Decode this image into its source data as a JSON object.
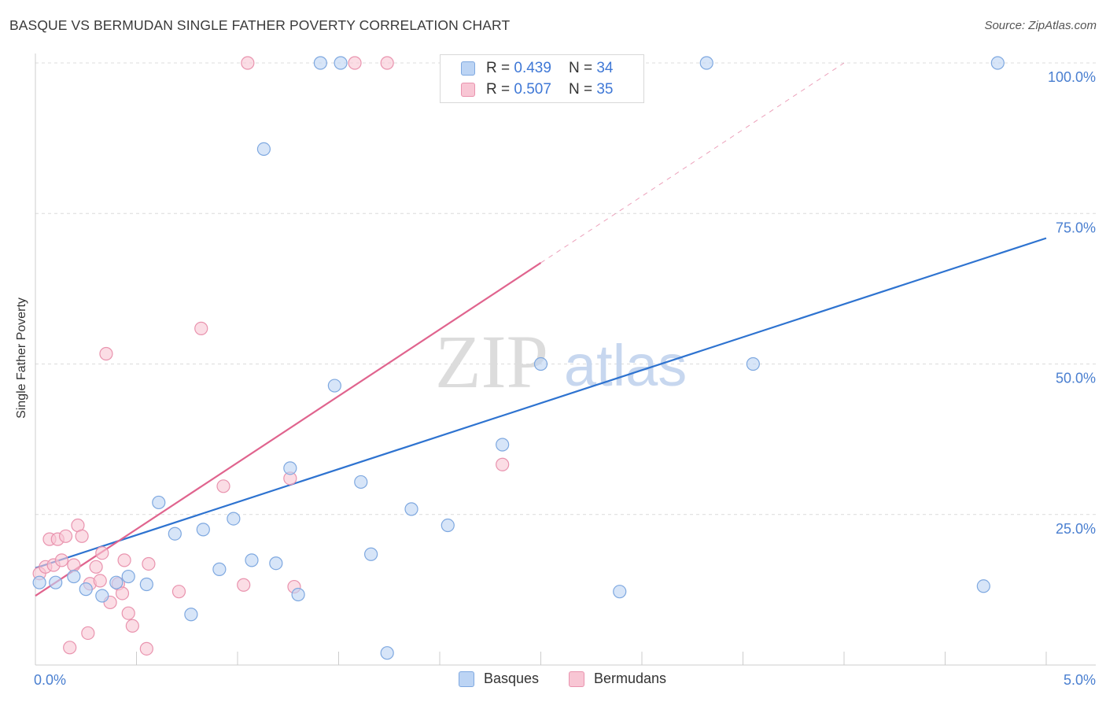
{
  "header": {
    "title": "BASQUE VS BERMUDAN SINGLE FATHER POVERTY CORRELATION CHART",
    "source": "Source: ZipAtlas.com"
  },
  "watermark": {
    "zip": "ZIP",
    "atlas": "atlas"
  },
  "legend": {
    "items": [
      {
        "r_label": "R =",
        "r_value": "0.439",
        "n_label": "N =",
        "n_value": "34"
      },
      {
        "r_label": "R =",
        "r_value": "0.507",
        "n_label": "N =",
        "n_value": "35"
      }
    ]
  },
  "bottom_legend": {
    "basques": "Basques",
    "bermudans": "Bermudans"
  },
  "colors": {
    "basque_fill": "#bcd4f4",
    "basque_stroke": "#7ea8e0",
    "basque_line": "#2e73d0",
    "bermudan_fill": "#f8c6d4",
    "bermudan_stroke": "#e993ae",
    "bermudan_line": "#e0648e",
    "grid": "#dcdcdc",
    "tick": "#4a7fd0"
  },
  "chart_data": {
    "type": "scatter",
    "title": "BASQUE VS BERMUDAN SINGLE FATHER POVERTY CORRELATION CHART",
    "xlabel": "",
    "ylabel": "Single Father Poverty",
    "xlim": [
      0,
      5
    ],
    "ylim": [
      0,
      100
    ],
    "x_tick_labels": [
      {
        "value": 0,
        "label": "0.0%"
      },
      {
        "value": 5,
        "label": "5.0%"
      }
    ],
    "y_tick_labels": [
      {
        "value": 25,
        "label": "25.0%"
      },
      {
        "value": 50,
        "label": "50.0%"
      },
      {
        "value": 75,
        "label": "75.0%"
      },
      {
        "value": 100,
        "label": "100.0%"
      }
    ],
    "series": [
      {
        "name": "Basques",
        "R": 0.439,
        "N": 34,
        "trend": {
          "x": [
            0,
            5
          ],
          "y": [
            16.1,
            70.9
          ],
          "dashed_extension": false
        },
        "points": [
          {
            "x": 0.02,
            "y": 13.7
          },
          {
            "x": 0.1,
            "y": 13.7
          },
          {
            "x": 0.19,
            "y": 14.7
          },
          {
            "x": 0.25,
            "y": 12.6
          },
          {
            "x": 0.33,
            "y": 11.5
          },
          {
            "x": 0.4,
            "y": 13.7
          },
          {
            "x": 0.46,
            "y": 14.7
          },
          {
            "x": 0.55,
            "y": 13.4
          },
          {
            "x": 0.61,
            "y": 27.0
          },
          {
            "x": 0.69,
            "y": 21.8
          },
          {
            "x": 0.77,
            "y": 8.4
          },
          {
            "x": 0.83,
            "y": 22.5
          },
          {
            "x": 0.91,
            "y": 15.9
          },
          {
            "x": 0.98,
            "y": 24.3
          },
          {
            "x": 1.07,
            "y": 17.4
          },
          {
            "x": 1.13,
            "y": 85.7
          },
          {
            "x": 1.19,
            "y": 16.9
          },
          {
            "x": 1.26,
            "y": 32.7
          },
          {
            "x": 1.3,
            "y": 11.7
          },
          {
            "x": 1.41,
            "y": 100.0
          },
          {
            "x": 1.48,
            "y": 46.4
          },
          {
            "x": 1.51,
            "y": 100.0
          },
          {
            "x": 1.61,
            "y": 30.4
          },
          {
            "x": 1.66,
            "y": 18.4
          },
          {
            "x": 1.74,
            "y": 2.0
          },
          {
            "x": 1.86,
            "y": 25.9
          },
          {
            "x": 2.04,
            "y": 23.2
          },
          {
            "x": 2.31,
            "y": 36.6
          },
          {
            "x": 2.5,
            "y": 50.0
          },
          {
            "x": 2.89,
            "y": 12.2
          },
          {
            "x": 3.32,
            "y": 100.0
          },
          {
            "x": 3.55,
            "y": 50.0
          },
          {
            "x": 4.69,
            "y": 13.1
          },
          {
            "x": 4.76,
            "y": 100.0
          }
        ]
      },
      {
        "name": "Bermudans",
        "R": 0.507,
        "N": 35,
        "trend": {
          "x": [
            0,
            2.5
          ],
          "y": [
            11.5,
            66.8
          ],
          "dashed_extension": true,
          "dashed_to": {
            "x": 4.0,
            "y": 100.0
          }
        },
        "points": [
          {
            "x": 0.02,
            "y": 15.2
          },
          {
            "x": 0.05,
            "y": 16.3
          },
          {
            "x": 0.07,
            "y": 20.9
          },
          {
            "x": 0.09,
            "y": 16.6
          },
          {
            "x": 0.11,
            "y": 20.9
          },
          {
            "x": 0.13,
            "y": 17.4
          },
          {
            "x": 0.15,
            "y": 21.4
          },
          {
            "x": 0.17,
            "y": 2.9
          },
          {
            "x": 0.19,
            "y": 16.6
          },
          {
            "x": 0.21,
            "y": 23.2
          },
          {
            "x": 0.23,
            "y": 21.4
          },
          {
            "x": 0.26,
            "y": 5.3
          },
          {
            "x": 0.27,
            "y": 13.5
          },
          {
            "x": 0.3,
            "y": 16.3
          },
          {
            "x": 0.32,
            "y": 14.0
          },
          {
            "x": 0.33,
            "y": 18.6
          },
          {
            "x": 0.35,
            "y": 51.7
          },
          {
            "x": 0.37,
            "y": 10.4
          },
          {
            "x": 0.41,
            "y": 13.5
          },
          {
            "x": 0.43,
            "y": 11.9
          },
          {
            "x": 0.44,
            "y": 17.4
          },
          {
            "x": 0.46,
            "y": 8.6
          },
          {
            "x": 0.48,
            "y": 6.5
          },
          {
            "x": 0.55,
            "y": 2.7
          },
          {
            "x": 0.56,
            "y": 16.8
          },
          {
            "x": 0.71,
            "y": 12.2
          },
          {
            "x": 0.82,
            "y": 55.9
          },
          {
            "x": 0.93,
            "y": 29.7
          },
          {
            "x": 1.03,
            "y": 13.3
          },
          {
            "x": 1.05,
            "y": 100.0
          },
          {
            "x": 1.26,
            "y": 31.0
          },
          {
            "x": 1.28,
            "y": 13.0
          },
          {
            "x": 1.74,
            "y": 100.0
          },
          {
            "x": 2.31,
            "y": 33.3
          },
          {
            "x": 1.58,
            "y": 100.0
          }
        ]
      }
    ]
  }
}
